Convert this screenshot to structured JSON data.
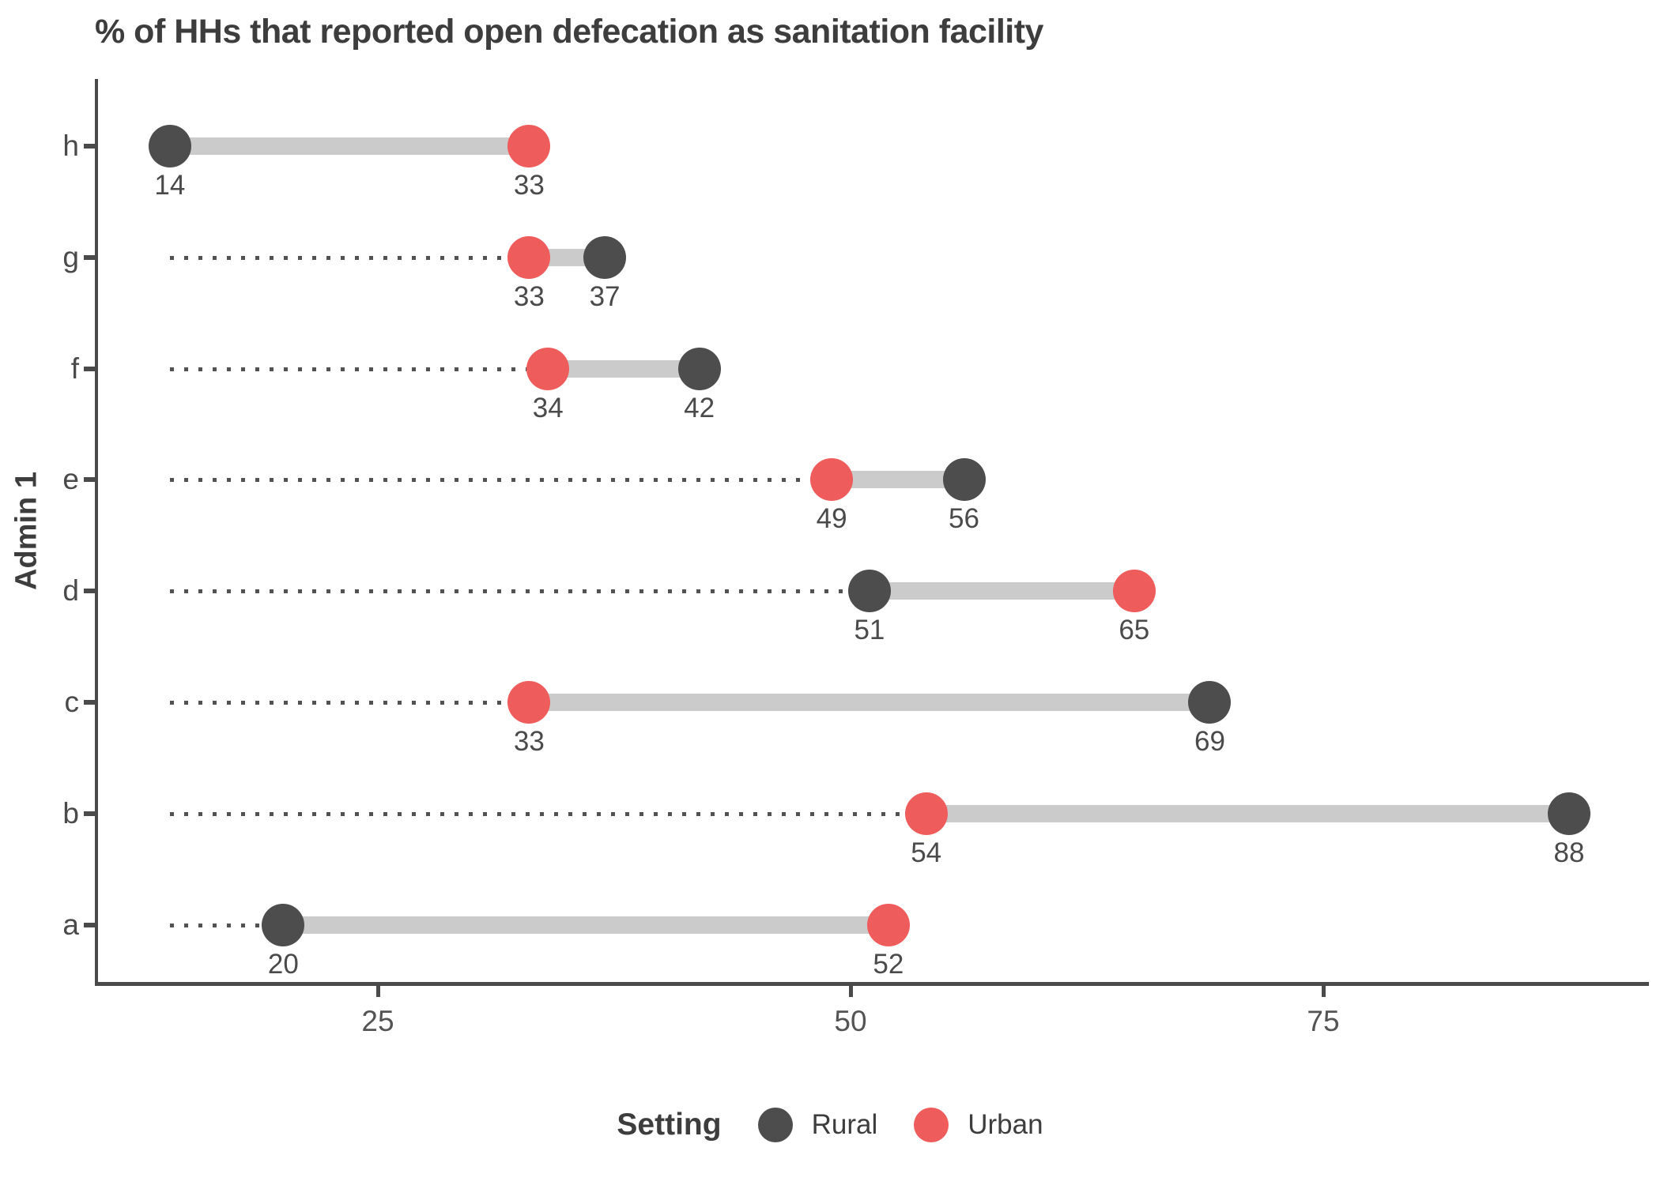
{
  "title": "% of HHs that reported open defecation as sanitation facility",
  "chart_data": {
    "type": "dumbbell",
    "title": "% of HHs that reported open defecation as sanitation facility",
    "xlabel": "",
    "ylabel": "Admin 1",
    "categories": [
      "h",
      "g",
      "f",
      "e",
      "d",
      "c",
      "b",
      "a"
    ],
    "series": [
      {
        "name": "Rural",
        "color": "#4d4d4d",
        "values": [
          14,
          37,
          42,
          56,
          51,
          69,
          88,
          20
        ]
      },
      {
        "name": "Urban",
        "color": "#ee5c5c",
        "values": [
          33,
          33,
          34,
          49,
          65,
          33,
          54,
          52
        ]
      }
    ],
    "value_labels": {
      "h": {
        "Rural": "14",
        "Urban": "33"
      },
      "g": {
        "Rural": "37",
        "Urban": "33"
      },
      "f": {
        "Rural": "42",
        "Urban": "34"
      },
      "e": {
        "Rural": "56",
        "Urban": "49"
      },
      "d": {
        "Rural": "51",
        "Urban": "65"
      },
      "c": {
        "Rural": "69",
        "Urban": "33"
      },
      "b": {
        "Rural": "88",
        "Urban": "54"
      },
      "a": {
        "Rural": "20",
        "Urban": "52"
      }
    },
    "x_ticks": [
      25,
      50,
      75
    ],
    "xlim": [
      10,
      92
    ],
    "leader_start_value": 14,
    "grid": false,
    "legend": {
      "title": "Setting",
      "position": "bottom",
      "entries": [
        {
          "label": "Rural",
          "color": "#4d4d4d"
        },
        {
          "label": "Urban",
          "color": "#ee5c5c"
        }
      ]
    },
    "style_colors": {
      "connector": "#cbcbcb",
      "leader_dots": "#525252",
      "axis": "#4a4a4a",
      "title_text": "#3d3d3d",
      "tick_label_text": "#545454",
      "value_label_text": "#4a4a4a"
    }
  }
}
